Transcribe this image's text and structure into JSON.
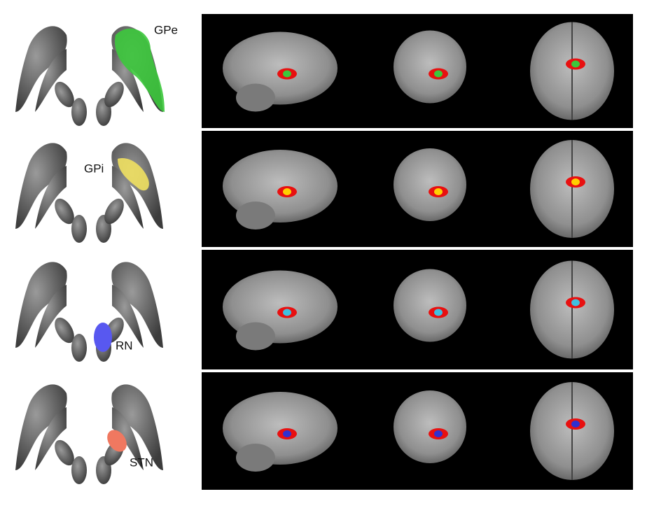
{
  "panels": [
    {
      "label": "GPe"
    },
    {
      "label": "GPi"
    },
    {
      "label": "RN"
    },
    {
      "label": "STN"
    }
  ]
}
